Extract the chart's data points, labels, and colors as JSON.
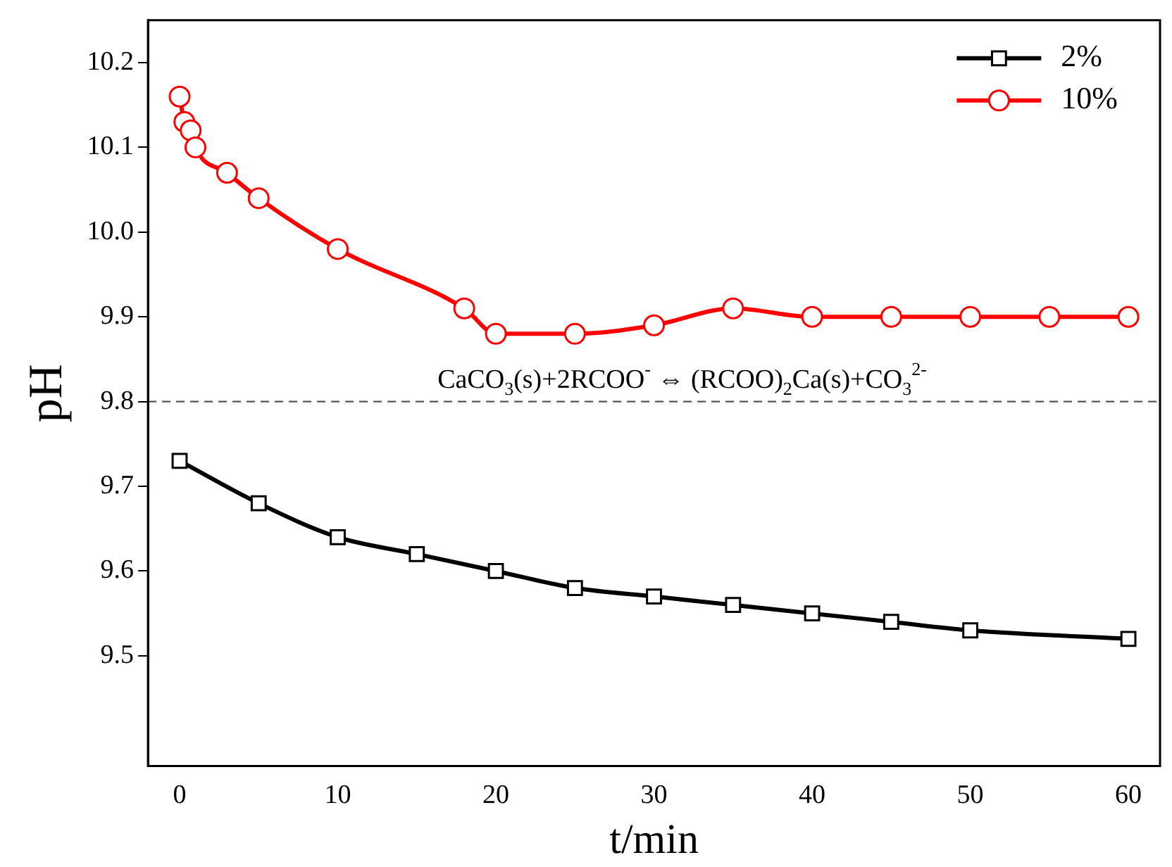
{
  "chart_data": {
    "type": "line",
    "xlabel": "t/min",
    "ylabel": "pH",
    "xlim": [
      -2,
      62
    ],
    "xticks": [
      0,
      10,
      20,
      30,
      40,
      50,
      60
    ],
    "ylim": [
      9.37,
      10.25
    ],
    "yticks": [
      9.5,
      9.6,
      9.7,
      9.8,
      9.9,
      {
        "value": 10,
        "label": "10.0"
      },
      10.1,
      10.2
    ],
    "grid": false,
    "legend": "top right",
    "line_style": "solid",
    "series": [
      {
        "name": "2%",
        "color": "#000000",
        "marker": "square",
        "x": [
          0,
          5,
          10,
          15,
          20,
          25,
          30,
          35,
          40,
          45,
          50,
          60
        ],
        "values": [
          9.73,
          9.68,
          9.64,
          9.62,
          9.6,
          9.58,
          9.57,
          9.56,
          9.55,
          9.54,
          9.53,
          9.52
        ]
      },
      {
        "name": "10%",
        "color": "#ff0000",
        "marker": "circle",
        "x": [
          0,
          0.3,
          0.7,
          1,
          3,
          5,
          10,
          18,
          20,
          25,
          30,
          35,
          40,
          45,
          50,
          55,
          60
        ],
        "values": [
          10.16,
          10.13,
          10.12,
          10.1,
          10.07,
          10.04,
          9.98,
          9.91,
          9.88,
          9.88,
          9.89,
          9.91,
          9.9,
          9.9,
          9.9,
          9.9,
          9.9
        ]
      }
    ],
    "ref_lines": [
      {
        "axis": "y",
        "value": 9.8,
        "label": "CaCO$_{3}$(s)+2RCOO$^{-}$ ⇔ (RCOO)$_{2}$Ca(s)+CO$_{3}$$^{2-}$",
        "color": "#555555",
        "line_style": "dashed"
      }
    ]
  }
}
